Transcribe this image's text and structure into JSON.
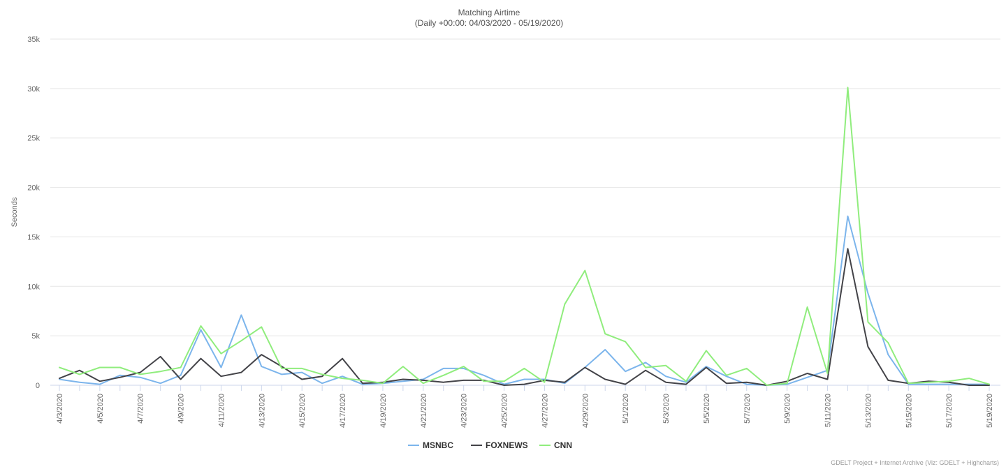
{
  "chart_data": {
    "type": "line",
    "title": "Matching Airtime",
    "subtitle": "(Daily +00:00: 04/03/2020 - 05/19/2020)",
    "ylabel": "Seconds",
    "xlabel": "",
    "ylim": [
      0,
      35000
    ],
    "y_ticks": [
      0,
      5000,
      10000,
      15000,
      20000,
      25000,
      30000,
      35000
    ],
    "y_tick_labels": [
      "0",
      "5k",
      "10k",
      "15k",
      "20k",
      "25k",
      "30k",
      "35k"
    ],
    "grid": true,
    "legend_position": "bottom-center",
    "categories": [
      "4/3/2020",
      "4/4/2020",
      "4/5/2020",
      "4/6/2020",
      "4/7/2020",
      "4/8/2020",
      "4/9/2020",
      "4/10/2020",
      "4/11/2020",
      "4/12/2020",
      "4/13/2020",
      "4/14/2020",
      "4/15/2020",
      "4/16/2020",
      "4/17/2020",
      "4/18/2020",
      "4/19/2020",
      "4/20/2020",
      "4/21/2020",
      "4/22/2020",
      "4/23/2020",
      "4/24/2020",
      "4/25/2020",
      "4/26/2020",
      "4/27/2020",
      "4/28/2020",
      "4/29/2020",
      "4/30/2020",
      "5/1/2020",
      "5/2/2020",
      "5/3/2020",
      "5/4/2020",
      "5/5/2020",
      "5/6/2020",
      "5/7/2020",
      "5/8/2020",
      "5/9/2020",
      "5/10/2020",
      "5/11/2020",
      "5/12/2020",
      "5/13/2020",
      "5/14/2020",
      "5/15/2020",
      "5/16/2020",
      "5/17/2020",
      "5/18/2020",
      "5/19/2020"
    ],
    "x_tick_labels": [
      "4/3/2020",
      "4/5/2020",
      "4/7/2020",
      "4/9/2020",
      "4/11/2020",
      "4/13/2020",
      "4/15/2020",
      "4/17/2020",
      "4/19/2020",
      "4/21/2020",
      "4/23/2020",
      "4/25/2020",
      "4/27/2020",
      "4/29/2020",
      "5/1/2020",
      "5/3/2020",
      "5/5/2020",
      "5/7/2020",
      "5/9/2020",
      "5/11/2020",
      "5/13/2020",
      "5/15/2020",
      "5/17/2020",
      "5/19/2020"
    ],
    "series": [
      {
        "name": "MSNBC",
        "color": "#7cb5ec",
        "values": [
          600,
          300,
          100,
          1000,
          800,
          200,
          1000,
          5600,
          1800,
          7100,
          1900,
          1100,
          1300,
          200,
          900,
          100,
          200,
          400,
          600,
          1700,
          1700,
          1000,
          100,
          600,
          600,
          200,
          1800,
          3600,
          1400,
          2300,
          900,
          300,
          1900,
          900,
          100,
          0,
          100,
          800,
          1500,
          17100,
          9300,
          3100,
          100,
          100,
          100,
          100,
          100
        ]
      },
      {
        "name": "FOXNEWS",
        "color": "#434348",
        "values": [
          700,
          1500,
          400,
          800,
          1300,
          2900,
          600,
          2700,
          900,
          1300,
          3100,
          1900,
          600,
          900,
          2700,
          200,
          300,
          600,
          500,
          300,
          500,
          500,
          0,
          100,
          500,
          300,
          1800,
          600,
          100,
          1500,
          300,
          100,
          1800,
          200,
          300,
          0,
          400,
          1200,
          600,
          13800,
          3900,
          500,
          200,
          400,
          300,
          0,
          0
        ]
      },
      {
        "name": "CNN",
        "color": "#90ed7d",
        "values": [
          1800,
          1100,
          1800,
          1800,
          1100,
          1400,
          1800,
          6000,
          3200,
          4500,
          5900,
          1700,
          1700,
          1100,
          700,
          500,
          200,
          1900,
          200,
          1000,
          1900,
          400,
          400,
          1700,
          300,
          8200,
          11600,
          5200,
          4400,
          1800,
          2000,
          400,
          3500,
          1000,
          1700,
          0,
          200,
          7900,
          1200,
          30100,
          6400,
          4300,
          200,
          300,
          400,
          700,
          100
        ]
      }
    ],
    "credits": "GDELT Project + Internet Archive (Viz: GDELT + Highcharts)"
  }
}
